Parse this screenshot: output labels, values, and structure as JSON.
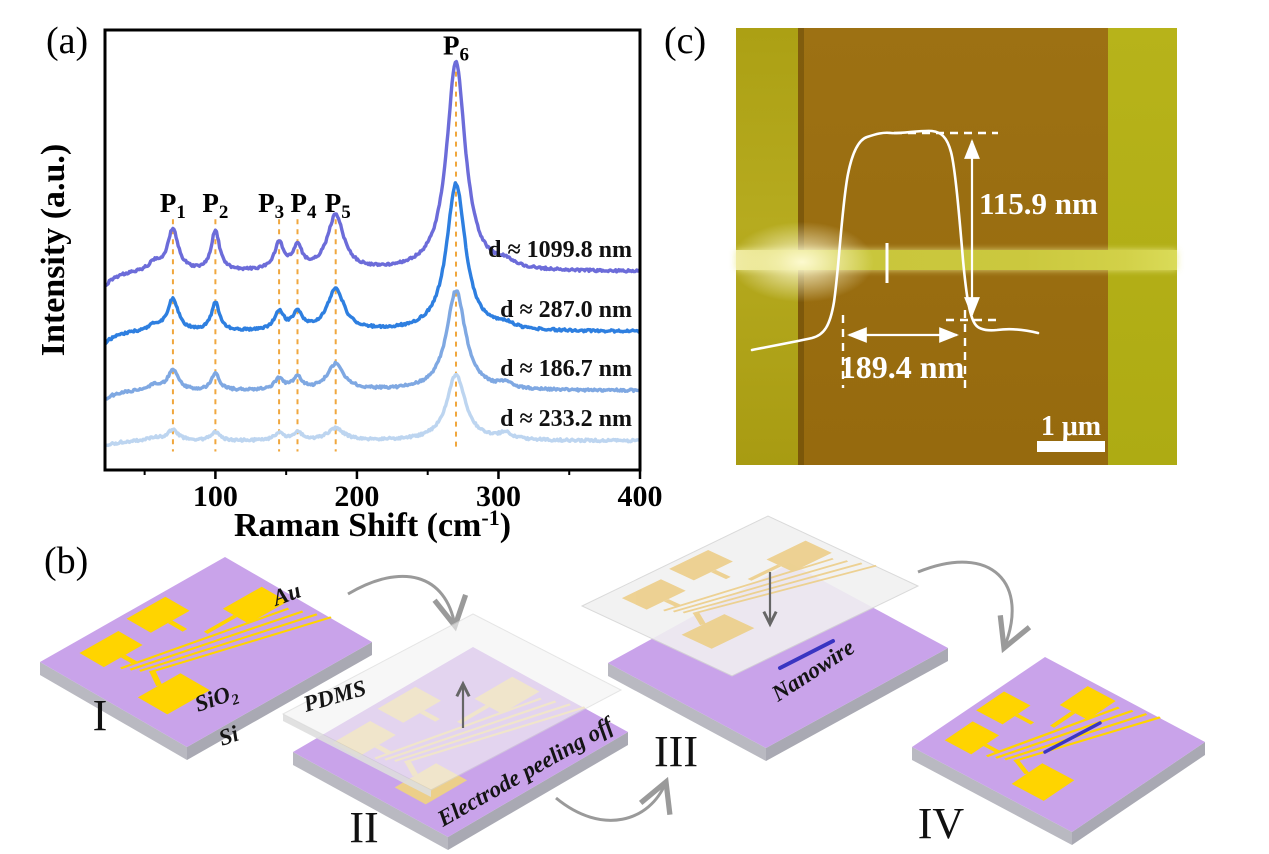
{
  "panels": {
    "a": {
      "label": "(a)"
    },
    "b": {
      "label": "(b)",
      "steps": [
        {
          "numeral": "I"
        },
        {
          "numeral": "II"
        },
        {
          "numeral": "III"
        },
        {
          "numeral": "IV"
        }
      ],
      "labels": {
        "au": "Au",
        "sio2_base": "SiO",
        "sio2_sub": "2",
        "si": "Si",
        "pdms": "PDMS",
        "peeling": "Electrode peeling off",
        "nanowire": "Nanowire"
      }
    },
    "c": {
      "label": "(c)",
      "height_annotation": "115.9 nm",
      "width_annotation": "189.4 nm",
      "scalebar": "1 μm"
    }
  },
  "chart_data": {
    "type": "line",
    "title": "",
    "xlabel_parts": {
      "pre": "Raman Shift (cm",
      "sup": "-1",
      "post": ")"
    },
    "ylabel": "Intensity (a.u.)",
    "xlim": [
      22,
      400
    ],
    "x_ticks": [
      100,
      200,
      300,
      400
    ],
    "x_minor_ticks": [
      50,
      150,
      250,
      350
    ],
    "grid": false,
    "legend_position": "inline-right",
    "peak_marker_color": "#f0a73e",
    "peak_markers": [
      {
        "base": "P",
        "sub": "1",
        "x": 70,
        "label_dx": 0,
        "tall": false
      },
      {
        "base": "P",
        "sub": "2",
        "x": 100,
        "label_dx": 0,
        "tall": false
      },
      {
        "base": "P",
        "sub": "3",
        "x": 145,
        "label_dx": -8,
        "tall": false
      },
      {
        "base": "P",
        "sub": "4",
        "x": 158,
        "label_dx": 6,
        "tall": false
      },
      {
        "base": "P",
        "sub": "5",
        "x": 185,
        "label_dx": 2,
        "tall": false
      },
      {
        "base": "P",
        "sub": "6",
        "x": 270,
        "label_dx": 0,
        "tall": true
      }
    ],
    "component_peaks_cm": [
      57,
      70,
      100,
      145,
      158,
      185,
      270,
      305
    ],
    "component_widths_cm": [
      5,
      4.5,
      3.5,
      4,
      4,
      7,
      8,
      6
    ],
    "series": [
      {
        "name": "d ≈ 1099.8 nm",
        "color": "#6c6cd9",
        "baseline_frac": 0.55,
        "left_dip": 15,
        "amplitudes": [
          8,
          42,
          40,
          26,
          22,
          55,
          210,
          6
        ]
      },
      {
        "name": "d ≈ 287.0 nm",
        "color": "#2e7fe0",
        "baseline_frac": 0.686,
        "left_dip": 12,
        "amplitudes": [
          6,
          32,
          28,
          18,
          18,
          42,
          148,
          5
        ]
      },
      {
        "name": "d ≈ 186.7 nm",
        "color": "#7fa8e2",
        "baseline_frac": 0.82,
        "left_dip": 9,
        "amplitudes": [
          5,
          20,
          16,
          11,
          12,
          26,
          100,
          5
        ]
      },
      {
        "name": "d ≈ 233.2 nm",
        "color": "#bdd5f0",
        "baseline_frac": 0.934,
        "left_dip": 6,
        "amplitudes": [
          3,
          11,
          9,
          7,
          8,
          12,
          66,
          6
        ]
      }
    ]
  },
  "colors": {
    "peak_marker_dash": "#f0a73e",
    "gold_electrode": "#ffd400",
    "muted_electrode": "#eccf8a",
    "substrate_purple": "#c9a3ea",
    "pdms_gray": "#f1f1f1",
    "nanowire_blue": "#3a35c2",
    "arrow_gray": "#9a9a9a",
    "afm_background": "#9b6f11",
    "afm_band_olive": "#b4ae19",
    "annotation_white": "#ffffff"
  }
}
